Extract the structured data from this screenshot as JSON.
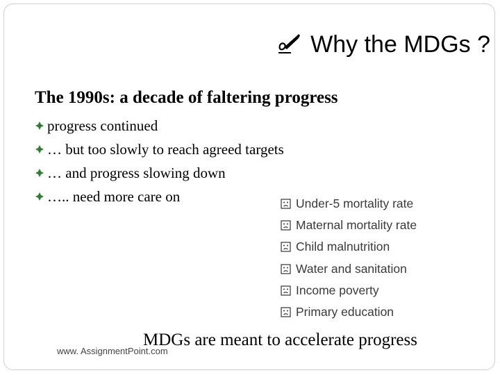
{
  "slide": {
    "title": "Why the MDGs ?",
    "subtitle": "The 1990s: a decade of faltering progress",
    "bullets": [
      "progress continued",
      "… but too slowly to reach agreed targets",
      "… and progress slowing down",
      "….. need more care on"
    ],
    "sub_items": [
      "Under-5 mortality rate",
      "Maternal mortality rate",
      "Child malnutrition",
      "Water and sanitation",
      "Income poverty",
      "Primary education"
    ],
    "conclusion": "MDGs are meant to accelerate progress",
    "footer_source": "www. AssignmentPoint.com"
  },
  "icons": {
    "title_icon": "pen-writing-icon",
    "bullet_icon": "diamond-bullet-icon",
    "sub_item_icon": "frown-face-icon"
  },
  "colors": {
    "bullet_icon": "#2e7d32",
    "sub_item_text": "#3a3a3a",
    "frame": "#cfcfcf"
  }
}
